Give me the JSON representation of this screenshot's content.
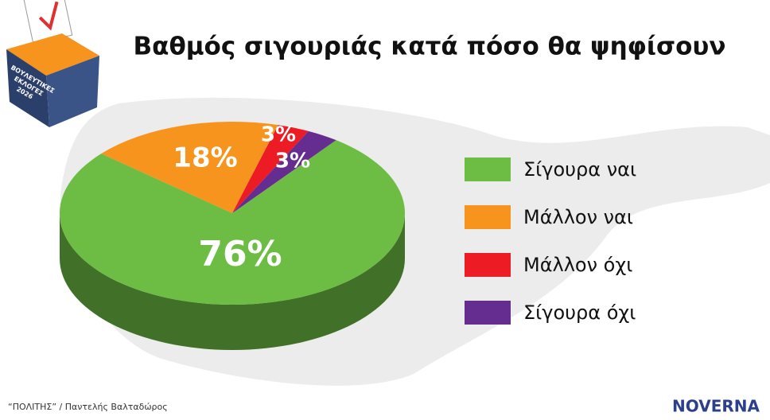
{
  "chart_data": {
    "type": "pie",
    "title": "Βαθμός σιγουριάς κατά πόσο θα ψηφίσουν",
    "categories": [
      "Σίγουρα ναι",
      "Μάλλον ναι",
      "Μάλλον όχι",
      "Σίγουρα όχι"
    ],
    "values": [
      76,
      18,
      3,
      3
    ],
    "value_labels": [
      "76%",
      "18%",
      "3%",
      "3%"
    ],
    "colors": [
      "#6dbd45",
      "#f7941d",
      "#ed1c24",
      "#662d91"
    ],
    "legend": "right"
  },
  "badge": {
    "lines": [
      "ΒΟΥΛΕΥΤΙΚΕΣ",
      "ΕΚΛΟΓΕΣ",
      "2026"
    ]
  },
  "footer": {
    "source": "“ΠΟΛΙΤΗΣ” / Παντελής Βαλταδώρος",
    "logo": "NOVERNA"
  }
}
